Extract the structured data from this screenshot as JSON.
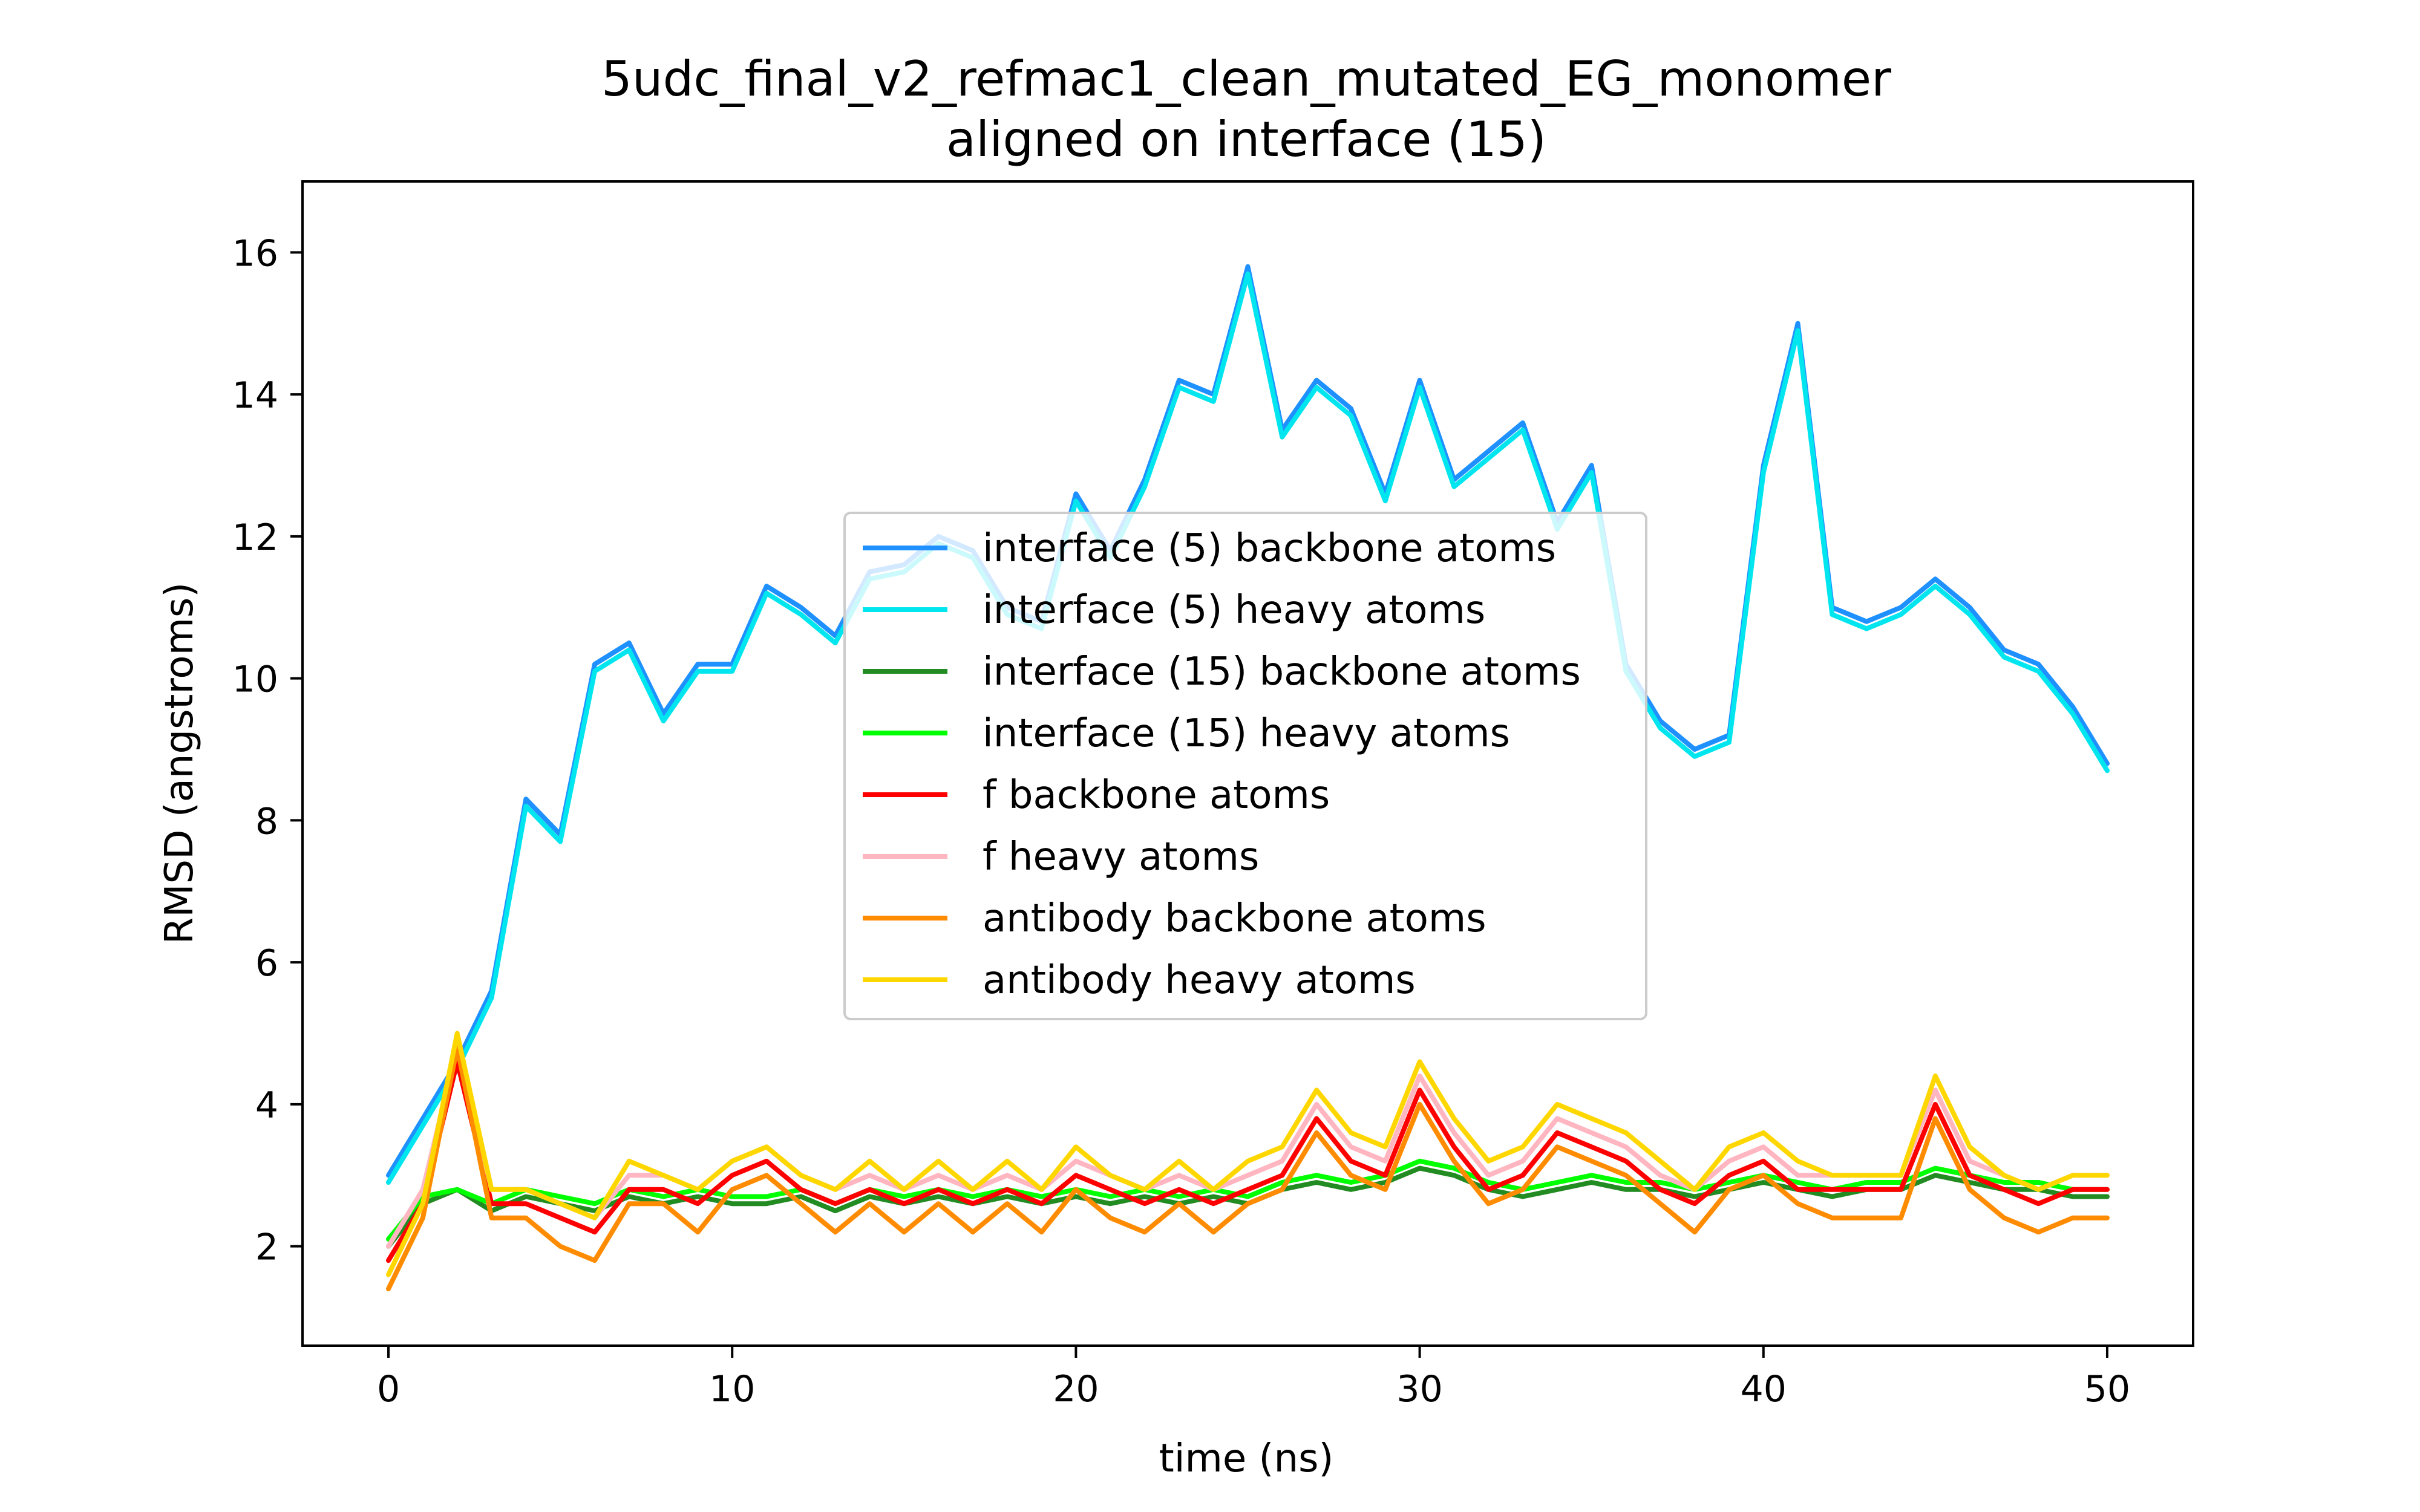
{
  "chart_data": {
    "type": "line",
    "title": "5udc_final_v2_refmac1_clean_mutated_EG_monomer",
    "subtitle": "aligned on interface (15)",
    "xlabel": "time (ns)",
    "ylabel": "RMSD (angstroms)",
    "xlim": [
      -2.5,
      52.5
    ],
    "ylim": [
      0.6,
      17.0
    ],
    "xticks": [
      0,
      10,
      20,
      30,
      40,
      50
    ],
    "yticks": [
      2,
      4,
      6,
      8,
      10,
      12,
      14,
      16
    ],
    "grid": false,
    "legend_position": "center",
    "x": [
      0,
      1,
      2,
      3,
      4,
      5,
      6,
      7,
      8,
      9,
      10,
      11,
      12,
      13,
      14,
      15,
      16,
      17,
      18,
      19,
      20,
      21,
      22,
      23,
      24,
      25,
      26,
      27,
      28,
      29,
      30,
      31,
      32,
      33,
      34,
      35,
      36,
      37,
      38,
      39,
      40,
      41,
      42,
      43,
      44,
      45,
      46,
      47,
      48,
      49,
      50
    ],
    "series": [
      {
        "name": "interface (5) backbone atoms",
        "color": "#1e90ff",
        "width": 8,
        "values": [
          3.0,
          3.8,
          4.6,
          5.6,
          8.3,
          7.8,
          10.2,
          10.5,
          9.5,
          10.2,
          10.2,
          11.3,
          11.0,
          10.6,
          11.5,
          11.6,
          12.0,
          11.8,
          11.0,
          10.8,
          12.6,
          11.8,
          12.8,
          14.2,
          14.0,
          15.8,
          13.5,
          14.2,
          13.8,
          12.6,
          14.2,
          12.8,
          13.2,
          13.6,
          12.2,
          13.0,
          10.2,
          9.4,
          9.0,
          9.2,
          13.0,
          15.0,
          11.0,
          10.8,
          11.0,
          11.4,
          11.0,
          10.4,
          10.2,
          9.6,
          8.8
        ]
      },
      {
        "name": "interface (5) heavy atoms",
        "color": "#00e5ee",
        "width": 8,
        "values": [
          2.9,
          3.7,
          4.5,
          5.5,
          8.2,
          7.7,
          10.1,
          10.4,
          9.4,
          10.1,
          10.1,
          11.2,
          10.9,
          10.5,
          11.4,
          11.5,
          11.9,
          11.7,
          10.9,
          10.7,
          12.5,
          11.7,
          12.7,
          14.1,
          13.9,
          15.7,
          13.4,
          14.1,
          13.7,
          12.5,
          14.1,
          12.7,
          13.1,
          13.5,
          12.1,
          12.9,
          10.1,
          9.3,
          8.9,
          9.1,
          12.9,
          14.9,
          10.9,
          10.7,
          10.9,
          11.3,
          10.9,
          10.3,
          10.1,
          9.5,
          8.7
        ]
      },
      {
        "name": "interface (15) backbone atoms",
        "color": "#228b22",
        "width": 8,
        "values": [
          2.0,
          2.6,
          2.8,
          2.5,
          2.7,
          2.6,
          2.5,
          2.7,
          2.6,
          2.7,
          2.6,
          2.6,
          2.7,
          2.5,
          2.7,
          2.6,
          2.7,
          2.6,
          2.7,
          2.6,
          2.7,
          2.6,
          2.7,
          2.6,
          2.7,
          2.6,
          2.8,
          2.9,
          2.8,
          2.9,
          3.1,
          3.0,
          2.8,
          2.7,
          2.8,
          2.9,
          2.8,
          2.8,
          2.7,
          2.8,
          2.9,
          2.8,
          2.7,
          2.8,
          2.8,
          3.0,
          2.9,
          2.8,
          2.8,
          2.7,
          2.7
        ]
      },
      {
        "name": "interface (15) heavy atoms",
        "color": "#00ff00",
        "width": 8,
        "values": [
          2.1,
          2.7,
          2.8,
          2.6,
          2.8,
          2.7,
          2.6,
          2.8,
          2.7,
          2.8,
          2.7,
          2.7,
          2.8,
          2.6,
          2.8,
          2.7,
          2.8,
          2.7,
          2.8,
          2.7,
          2.8,
          2.7,
          2.8,
          2.7,
          2.8,
          2.7,
          2.9,
          3.0,
          2.9,
          3.0,
          3.2,
          3.1,
          2.9,
          2.8,
          2.9,
          3.0,
          2.9,
          2.9,
          2.8,
          2.9,
          3.0,
          2.9,
          2.8,
          2.9,
          2.9,
          3.1,
          3.0,
          2.9,
          2.9,
          2.8,
          2.8
        ]
      },
      {
        "name": "f backbone atoms",
        "color": "#ff0000",
        "width": 8,
        "values": [
          1.8,
          2.6,
          4.6,
          2.6,
          2.6,
          2.4,
          2.2,
          2.8,
          2.8,
          2.6,
          3.0,
          3.2,
          2.8,
          2.6,
          2.8,
          2.6,
          2.8,
          2.6,
          2.8,
          2.6,
          3.0,
          2.8,
          2.6,
          2.8,
          2.6,
          2.8,
          3.0,
          3.8,
          3.2,
          3.0,
          4.2,
          3.4,
          2.8,
          3.0,
          3.6,
          3.4,
          3.2,
          2.8,
          2.6,
          3.0,
          3.2,
          2.8,
          2.8,
          2.8,
          2.8,
          4.0,
          3.0,
          2.8,
          2.6,
          2.8,
          2.8
        ]
      },
      {
        "name": "f heavy atoms",
        "color": "#ffb6c1",
        "width": 8,
        "values": [
          2.0,
          2.8,
          4.8,
          2.8,
          2.8,
          2.6,
          2.4,
          3.0,
          3.0,
          2.8,
          3.2,
          3.4,
          3.0,
          2.8,
          3.0,
          2.8,
          3.0,
          2.8,
          3.0,
          2.8,
          3.2,
          3.0,
          2.8,
          3.0,
          2.8,
          3.0,
          3.2,
          4.0,
          3.4,
          3.2,
          4.4,
          3.6,
          3.0,
          3.2,
          3.8,
          3.6,
          3.4,
          3.0,
          2.8,
          3.2,
          3.4,
          3.0,
          3.0,
          3.0,
          3.0,
          4.2,
          3.2,
          3.0,
          2.8,
          3.0,
          3.0
        ]
      },
      {
        "name": "antibody backbone atoms",
        "color": "#ff8c00",
        "width": 8,
        "values": [
          1.4,
          2.4,
          4.8,
          2.4,
          2.4,
          2.0,
          1.8,
          2.6,
          2.6,
          2.2,
          2.8,
          3.0,
          2.6,
          2.2,
          2.6,
          2.2,
          2.6,
          2.2,
          2.6,
          2.2,
          2.8,
          2.4,
          2.2,
          2.6,
          2.2,
          2.6,
          2.8,
          3.6,
          3.0,
          2.8,
          4.0,
          3.2,
          2.6,
          2.8,
          3.4,
          3.2,
          3.0,
          2.6,
          2.2,
          2.8,
          3.0,
          2.6,
          2.4,
          2.4,
          2.4,
          3.8,
          2.8,
          2.4,
          2.2,
          2.4,
          2.4
        ]
      },
      {
        "name": "antibody heavy atoms",
        "color": "#ffd700",
        "width": 8,
        "values": [
          1.6,
          2.6,
          5.0,
          2.8,
          2.8,
          2.6,
          2.4,
          3.2,
          3.0,
          2.8,
          3.2,
          3.4,
          3.0,
          2.8,
          3.2,
          2.8,
          3.2,
          2.8,
          3.2,
          2.8,
          3.4,
          3.0,
          2.8,
          3.2,
          2.8,
          3.2,
          3.4,
          4.2,
          3.6,
          3.4,
          4.6,
          3.8,
          3.2,
          3.4,
          4.0,
          3.8,
          3.6,
          3.2,
          2.8,
          3.4,
          3.6,
          3.2,
          3.0,
          3.0,
          3.0,
          4.4,
          3.4,
          3.0,
          2.8,
          3.0,
          3.0
        ]
      }
    ]
  }
}
